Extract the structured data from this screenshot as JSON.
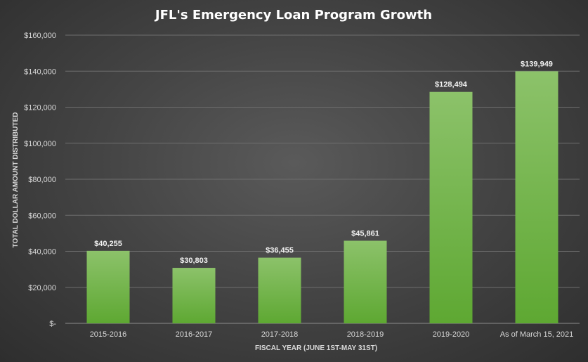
{
  "chart_data": {
    "type": "bar",
    "title": "JFL's Emergency Loan Program Growth",
    "xlabel": "FISCAL YEAR (JUNE 1ST-MAY 31ST)",
    "ylabel": "TOTAL DOLLAR AMOUNT DISTRIBUTED",
    "categories": [
      "2015-2016",
      "2016-2017",
      "2017-2018",
      "2018-2019",
      "2019-2020",
      "As of March 15, 2021"
    ],
    "values": [
      40255,
      30803,
      36455,
      45861,
      128494,
      139949
    ],
    "data_labels": [
      "$40,255",
      "$30,803",
      "$36,455",
      "$45,861",
      "$128,494",
      "$139,949"
    ],
    "ylim": [
      0,
      160000
    ],
    "yticks": [
      0,
      20000,
      40000,
      60000,
      80000,
      100000,
      120000,
      140000,
      160000
    ],
    "ytick_labels": [
      "$-",
      "$20,000",
      "$40,000",
      "$60,000",
      "$80,000",
      "$100,000",
      "$120,000",
      "$140,000",
      "$160,000"
    ],
    "grid": true,
    "legend": "none",
    "colors": {
      "bar_top": "#8cc26a",
      "bar_bottom": "#5ea832",
      "background": "#454545"
    }
  }
}
